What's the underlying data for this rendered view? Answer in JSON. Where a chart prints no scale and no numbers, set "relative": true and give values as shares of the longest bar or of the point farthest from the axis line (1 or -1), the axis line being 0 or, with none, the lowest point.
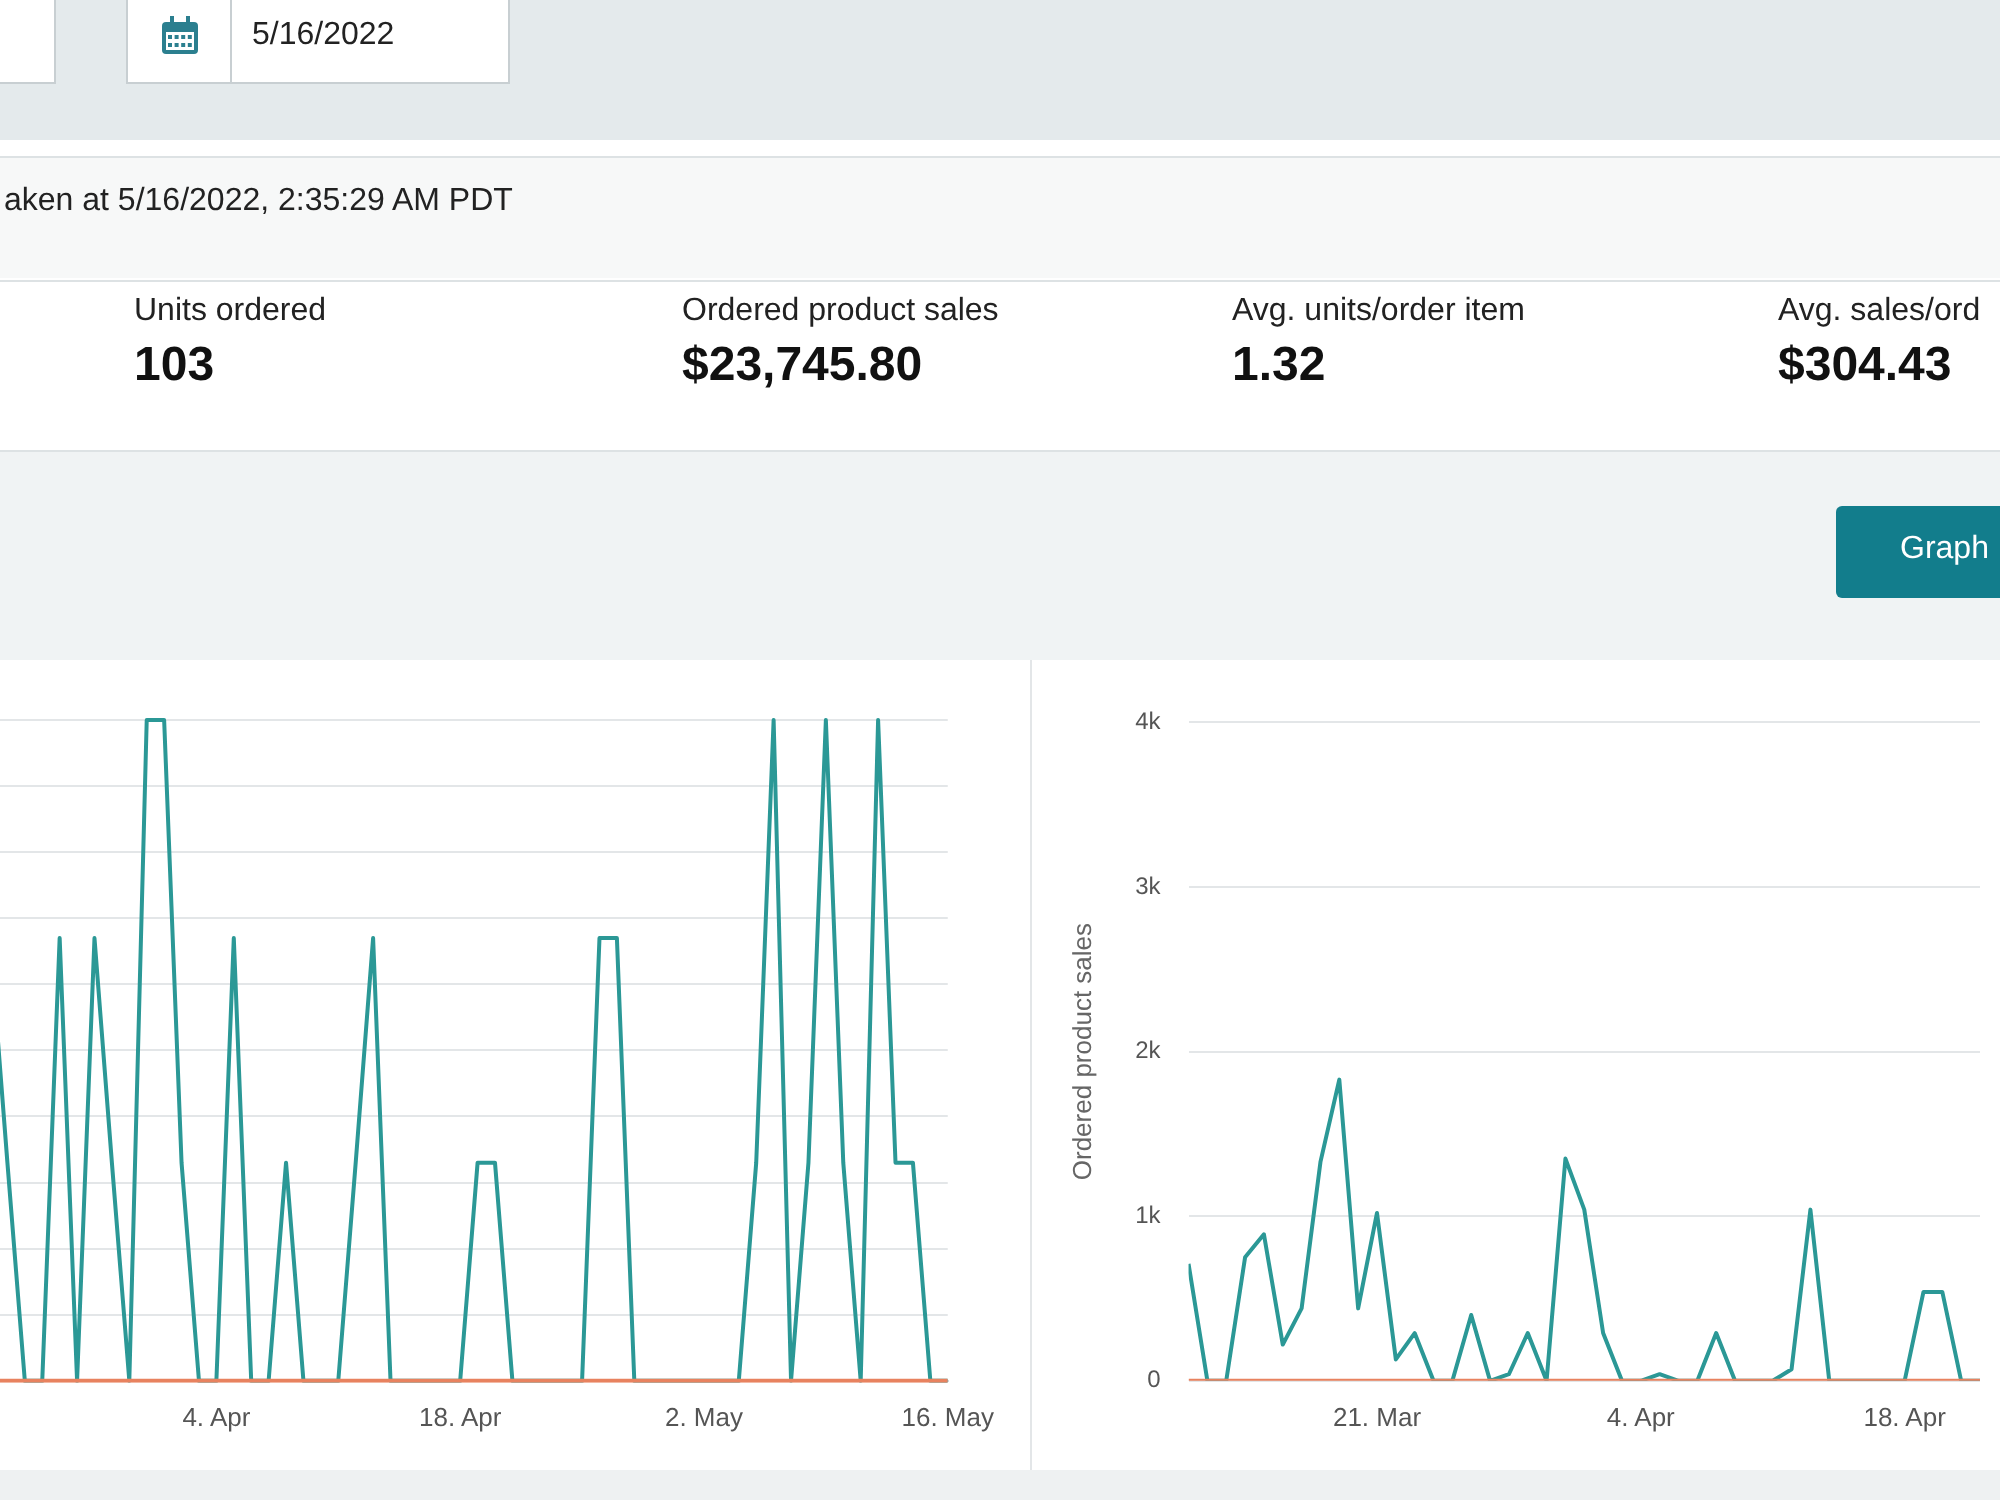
{
  "chart_data": [
    {
      "type": "other",
      "annotations": [
        "5/16/2022",
        "aken at 5/16/2022, 2:35:29 AM PDT",
        "Units ordered",
        "103",
        "Ordered product sales",
        "$23,745.80",
        "Avg. units/order item",
        "1.32",
        "Avg. sales/ord",
        "$304.43",
        "Graph"
      ]
    },
    {
      "type": "line",
      "relative": true,
      "tick_labels": "x",
      "grid": "y",
      "marker": "none",
      "x": [
        "--03-22",
        "--03-23",
        "--03-24",
        "--03-25",
        "--03-26",
        "--03-27",
        "--03-28",
        "--03-29",
        "--03-30",
        "--03-31",
        "--04-01",
        "--04-02",
        "--04-03",
        "--04-04",
        "--04-05",
        "--04-06",
        "--04-07",
        "--04-08",
        "--04-09",
        "--04-10",
        "--04-11",
        "--04-12",
        "--04-13",
        "--04-14",
        "--04-15",
        "--04-16",
        "--04-17",
        "--04-18",
        "--04-19",
        "--04-20",
        "--04-21",
        "--04-22",
        "--04-23",
        "--04-24",
        "--04-25",
        "--04-26",
        "--04-27",
        "--04-28",
        "--04-29",
        "--04-30",
        "--05-01",
        "--05-02",
        "--05-03",
        "--05-04",
        "--05-05",
        "--05-06",
        "--05-07",
        "--05-08",
        "--05-09",
        "--05-10",
        "--05-11",
        "--05-12",
        "--05-13",
        "--05-14",
        "--05-15",
        "--05-16"
      ],
      "xlim": [
        "--03-22",
        "--05-16"
      ],
      "xticks": [
        {
          "value": "--04-04",
          "label": "4. Apr"
        },
        {
          "value": "--04-18",
          "label": "18. Apr"
        },
        {
          "value": "--05-02",
          "label": "2. May"
        },
        {
          "value": "--05-16",
          "label": "16. May"
        }
      ],
      "series": [
        {
          "color": "#2b9896",
          "values": [
            0.67,
            0.33,
            0,
            0,
            0.67,
            0,
            0.67,
            0.33,
            0,
            1,
            1,
            0.33,
            0,
            0,
            0.67,
            0,
            0,
            0.33,
            0,
            0,
            0,
            0.33,
            0.67,
            0,
            0,
            0,
            0,
            0,
            0.33,
            0.33,
            0,
            0,
            0,
            0,
            0,
            0.67,
            0.67,
            0,
            0,
            0,
            0,
            0,
            0,
            0,
            0.33,
            1,
            0,
            0.33,
            1,
            0.33,
            0,
            1,
            0.33,
            0.33,
            0,
            0
          ]
        },
        {
          "color": "#e8825f",
          "values": [
            0,
            0,
            0,
            0,
            0,
            0,
            0,
            0,
            0,
            0,
            0,
            0,
            0,
            0,
            0,
            0,
            0,
            0,
            0,
            0,
            0,
            0,
            0,
            0,
            0,
            0,
            0,
            0,
            0,
            0,
            0,
            0,
            0,
            0,
            0,
            0,
            0,
            0,
            0,
            0,
            0,
            0,
            0,
            0,
            0,
            0,
            0,
            0,
            0,
            0,
            0,
            0,
            0,
            0,
            0,
            0
          ]
        }
      ]
    },
    {
      "type": "line",
      "ylabel": "Ordered product sales",
      "grid": "y",
      "marker": "none",
      "x": [
        "--03-11",
        "--03-12",
        "--03-13",
        "--03-14",
        "--03-15",
        "--03-16",
        "--03-17",
        "--03-18",
        "--03-19",
        "--03-20",
        "--03-21",
        "--03-22",
        "--03-23",
        "--03-24",
        "--03-25",
        "--03-26",
        "--03-27",
        "--03-28",
        "--03-29",
        "--03-30",
        "--03-31",
        "--04-01",
        "--04-02",
        "--04-03",
        "--04-04",
        "--04-05",
        "--04-06",
        "--04-07",
        "--04-08",
        "--04-09",
        "--04-10",
        "--04-11",
        "--04-12",
        "--04-13",
        "--04-14",
        "--04-15",
        "--04-16",
        "--04-17",
        "--04-18",
        "--04-19",
        "--04-20",
        "--04-21",
        "--04-22"
      ],
      "xlim": [
        "--03-11",
        "--04-22"
      ],
      "xticks": [
        {
          "value": "--03-21",
          "label": "21. Mar"
        },
        {
          "value": "--04-04",
          "label": "4. Apr"
        },
        {
          "value": "--04-18",
          "label": "18. Apr"
        }
      ],
      "ylim": [
        0,
        4000
      ],
      "yticks": [
        0,
        {
          "value": 1000,
          "label": "1k"
        },
        {
          "value": 2000,
          "label": "2k"
        },
        {
          "value": 3000,
          "label": "3k"
        },
        {
          "value": 4000,
          "label": "4k"
        }
      ],
      "series": [
        {
          "color": "#2b9896",
          "values": [
            710,
            0,
            0,
            750,
            890,
            220,
            440,
            1330,
            1830,
            440,
            1020,
            130,
            290,
            0,
            0,
            400,
            0,
            40,
            290,
            0,
            1350,
            1040,
            290,
            0,
            0,
            40,
            0,
            0,
            290,
            0,
            0,
            0,
            70,
            1040,
            0,
            0,
            0,
            0,
            0,
            540,
            540,
            0,
            0
          ]
        },
        {
          "color": "#e8825f",
          "values": [
            0,
            0,
            0,
            0,
            0,
            0,
            0,
            0,
            0,
            0,
            0,
            0,
            0,
            0,
            0,
            0,
            0,
            0,
            0,
            0,
            0,
            0,
            0,
            0,
            0,
            0,
            0,
            0,
            0,
            0,
            0,
            0,
            0,
            0,
            0,
            0,
            0,
            0,
            0,
            0,
            0,
            0,
            0
          ]
        }
      ]
    }
  ]
}
